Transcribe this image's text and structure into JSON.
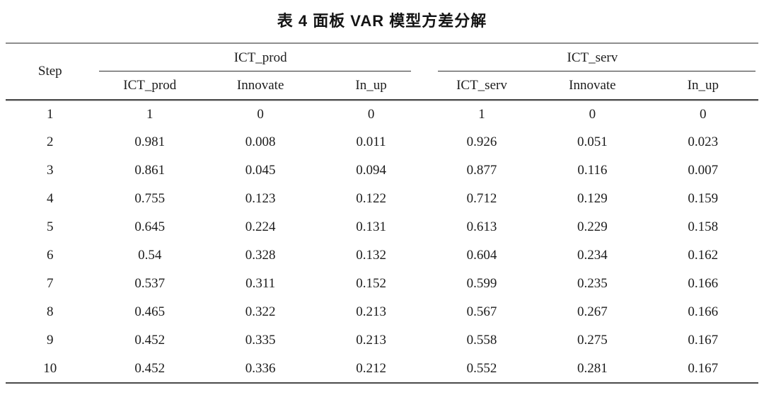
{
  "title": "表 4  面板 VAR 模型方差分解",
  "table": {
    "step_header": "Step",
    "groups": [
      {
        "label": "ICT_prod",
        "columns": [
          "ICT_prod",
          "Innovate",
          "In_up"
        ]
      },
      {
        "label": "ICT_serv",
        "columns": [
          "ICT_serv",
          "Innovate",
          "In_up"
        ]
      }
    ],
    "rows": [
      {
        "step": "1",
        "values": [
          "1",
          "0",
          "0",
          "1",
          "0",
          "0"
        ]
      },
      {
        "step": "2",
        "values": [
          "0.981",
          "0.008",
          "0.011",
          "0.926",
          "0.051",
          "0.023"
        ]
      },
      {
        "step": "3",
        "values": [
          "0.861",
          "0.045",
          "0.094",
          "0.877",
          "0.116",
          "0.007"
        ]
      },
      {
        "step": "4",
        "values": [
          "0.755",
          "0.123",
          "0.122",
          "0.712",
          "0.129",
          "0.159"
        ]
      },
      {
        "step": "5",
        "values": [
          "0.645",
          "0.224",
          "0.131",
          "0.613",
          "0.229",
          "0.158"
        ]
      },
      {
        "step": "6",
        "values": [
          "0.54",
          "0.328",
          "0.132",
          "0.604",
          "0.234",
          "0.162"
        ]
      },
      {
        "step": "7",
        "values": [
          "0.537",
          "0.311",
          "0.152",
          "0.599",
          "0.235",
          "0.166"
        ]
      },
      {
        "step": "8",
        "values": [
          "0.465",
          "0.322",
          "0.213",
          "0.567",
          "0.267",
          "0.166"
        ]
      },
      {
        "step": "9",
        "values": [
          "0.452",
          "0.335",
          "0.213",
          "0.558",
          "0.275",
          "0.167"
        ]
      },
      {
        "step": "10",
        "values": [
          "0.452",
          "0.336",
          "0.212",
          "0.552",
          "0.281",
          "0.167"
        ]
      }
    ]
  },
  "colors": {
    "text": "#1c1c1c",
    "rule_dark": "#4a4a4a",
    "rule_light": "#8e8e8e",
    "background": "#ffffff"
  },
  "chart_data": {
    "type": "table",
    "title": "表 4  面板 VAR 模型方差分解",
    "column_groups": [
      "ICT_prod",
      "ICT_serv"
    ],
    "columns": [
      "Step",
      "ICT_prod",
      "Innovate",
      "In_up",
      "ICT_serv",
      "Innovate",
      "In_up"
    ],
    "rows": [
      [
        1,
        1,
        0,
        0,
        1,
        0,
        0
      ],
      [
        2,
        0.981,
        0.008,
        0.011,
        0.926,
        0.051,
        0.023
      ],
      [
        3,
        0.861,
        0.045,
        0.094,
        0.877,
        0.116,
        0.007
      ],
      [
        4,
        0.755,
        0.123,
        0.122,
        0.712,
        0.129,
        0.159
      ],
      [
        5,
        0.645,
        0.224,
        0.131,
        0.613,
        0.229,
        0.158
      ],
      [
        6,
        0.54,
        0.328,
        0.132,
        0.604,
        0.234,
        0.162
      ],
      [
        7,
        0.537,
        0.311,
        0.152,
        0.599,
        0.235,
        0.166
      ],
      [
        8,
        0.465,
        0.322,
        0.213,
        0.567,
        0.267,
        0.166
      ],
      [
        9,
        0.452,
        0.335,
        0.213,
        0.558,
        0.275,
        0.167
      ],
      [
        10,
        0.452,
        0.336,
        0.212,
        0.552,
        0.281,
        0.167
      ]
    ]
  }
}
